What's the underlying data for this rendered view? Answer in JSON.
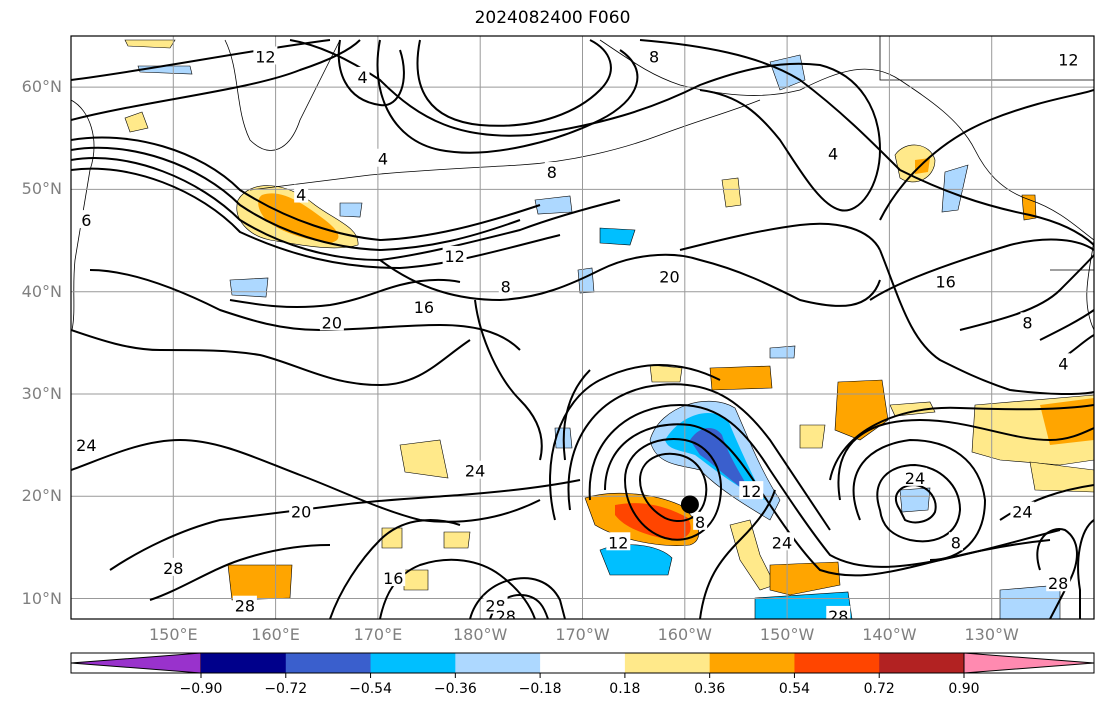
{
  "title": "2024082400 F060",
  "map": {
    "projection": "equirectangular",
    "extent": {
      "lon_min": 140,
      "lon_max": 240,
      "lat_min": 8,
      "lat_max": 65
    },
    "grid": true,
    "lat_labels": [
      {
        "lat": 60,
        "text": "60°N"
      },
      {
        "lat": 50,
        "text": "50°N"
      },
      {
        "lat": 40,
        "text": "40°N"
      },
      {
        "lat": 30,
        "text": "30°N"
      },
      {
        "lat": 20,
        "text": "20°N"
      },
      {
        "lat": 10,
        "text": "10°N"
      }
    ],
    "lon_labels": [
      {
        "lon": 150,
        "text": "150°E"
      },
      {
        "lon": 160,
        "text": "160°E"
      },
      {
        "lon": 170,
        "text": "170°E"
      },
      {
        "lon": 180,
        "text": "180°W"
      },
      {
        "lon": 190,
        "text": "170°W"
      },
      {
        "lon": 200,
        "text": "160°W"
      },
      {
        "lon": 210,
        "text": "150°W"
      },
      {
        "lon": 220,
        "text": "140°W"
      },
      {
        "lon": 230,
        "text": "130°W"
      }
    ],
    "storm_marker": {
      "lon": 200.5,
      "lat": 19.2
    },
    "contour_labels": [
      {
        "lon": 159,
        "lat": 63,
        "text": "12"
      },
      {
        "lon": 168.5,
        "lat": 61,
        "text": "4"
      },
      {
        "lon": 197,
        "lat": 63,
        "text": "8"
      },
      {
        "lon": 237.5,
        "lat": 62.7,
        "text": "12"
      },
      {
        "lon": 162.5,
        "lat": 49.5,
        "text": "4"
      },
      {
        "lon": 170.5,
        "lat": 53,
        "text": "4"
      },
      {
        "lon": 187,
        "lat": 51.7,
        "text": "8"
      },
      {
        "lon": 214.5,
        "lat": 53.5,
        "text": "4"
      },
      {
        "lon": 141.5,
        "lat": 47,
        "text": "6"
      },
      {
        "lon": 177.5,
        "lat": 43.5,
        "text": "12"
      },
      {
        "lon": 182.5,
        "lat": 40.5,
        "text": "8"
      },
      {
        "lon": 174.5,
        "lat": 38.5,
        "text": "16"
      },
      {
        "lon": 198.5,
        "lat": 41.5,
        "text": "20"
      },
      {
        "lon": 225.5,
        "lat": 41,
        "text": "16"
      },
      {
        "lon": 165.5,
        "lat": 37,
        "text": "20"
      },
      {
        "lon": 233.5,
        "lat": 37,
        "text": "8"
      },
      {
        "lon": 237,
        "lat": 33,
        "text": "4"
      },
      {
        "lon": 141.5,
        "lat": 25,
        "text": "24"
      },
      {
        "lon": 179.5,
        "lat": 22.5,
        "text": "24"
      },
      {
        "lon": 206.5,
        "lat": 20.5,
        "text": "12"
      },
      {
        "lon": 222.5,
        "lat": 21.8,
        "text": "24"
      },
      {
        "lon": 233,
        "lat": 18.5,
        "text": "24"
      },
      {
        "lon": 162.5,
        "lat": 18.5,
        "text": "20"
      },
      {
        "lon": 201.5,
        "lat": 17.5,
        "text": "8"
      },
      {
        "lon": 193.5,
        "lat": 15.5,
        "text": "12"
      },
      {
        "lon": 209.5,
        "lat": 15.5,
        "text": "24"
      },
      {
        "lon": 226.5,
        "lat": 15.5,
        "text": "8"
      },
      {
        "lon": 150,
        "lat": 13,
        "text": "28"
      },
      {
        "lon": 171.5,
        "lat": 12,
        "text": "16"
      },
      {
        "lon": 236.5,
        "lat": 11.5,
        "text": "28"
      },
      {
        "lon": 157,
        "lat": 9.3,
        "text": "28"
      },
      {
        "lon": 181.5,
        "lat": 9.3,
        "text": "28"
      },
      {
        "lon": 182.5,
        "lat": 8.3,
        "text": "28"
      },
      {
        "lon": 215,
        "lat": 8.3,
        "text": "28"
      }
    ]
  },
  "colorbar": {
    "colors": [
      "#9932CC",
      "#00008B",
      "#3A5FCD",
      "#00BFFF",
      "#ADD8FF",
      "#FFFFFF",
      "#FFE98A",
      "#FFA500",
      "#FF4500",
      "#B22222",
      "#FF8AB0"
    ],
    "tick_labels": [
      "−0.90",
      "−0.72",
      "−0.54",
      "−0.36",
      "−0.18",
      "0.18",
      "0.36",
      "0.54",
      "0.72",
      "0.90"
    ]
  }
}
